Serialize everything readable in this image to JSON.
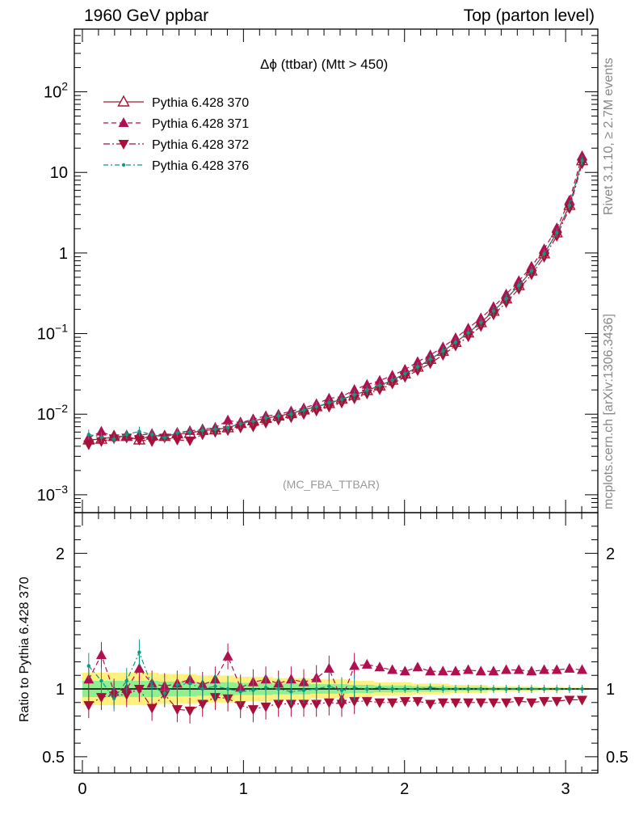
{
  "header": {
    "left_title": "1960 GeV ppbar",
    "right_title": "Top (parton level)",
    "observable": "Δϕ (ttbar) (Mtt > 450)",
    "analysis_tag": "(MC_FBA_TTBAR)",
    "side_rivet": "Rivet 3.1.10, ≥ 2.7M events",
    "side_site": "mcplots.cern.ch [arXiv:1306.3436]",
    "ratio_ylabel": "Ratio to Pythia 6.428 370"
  },
  "colors": {
    "s370": "#a01830",
    "s371": "#b01050",
    "s372": "#a8103a",
    "s376": "#109a80",
    "band_inner": "#90f090",
    "band_outer": "#fff080"
  },
  "chart_data": [
    {
      "type": "scatter",
      "panel": "main",
      "yscale": "log",
      "xlim": [
        -0.05,
        3.2
      ],
      "ylim": [
        0.0006,
        600
      ],
      "xticklabels": [
        "0",
        "1",
        "2",
        "3"
      ],
      "yticklabels": [
        "10^-3",
        "10^-2",
        "10^-1",
        "1",
        "10",
        "10^2"
      ],
      "legend": [
        "Pythia 6.428 370",
        "Pythia 6.428 371",
        "Pythia 6.428 372",
        "Pythia 6.428 376"
      ],
      "legend_position": "top-left",
      "x": [
        0.0393,
        0.1178,
        0.1963,
        0.2749,
        0.3534,
        0.432,
        0.5105,
        0.589,
        0.6676,
        0.7461,
        0.8247,
        0.9032,
        0.9817,
        1.0603,
        1.1388,
        1.2174,
        1.2959,
        1.3744,
        1.453,
        1.5315,
        1.6101,
        1.6886,
        1.7671,
        1.8457,
        1.9242,
        2.0028,
        2.0813,
        2.1598,
        2.2384,
        2.3169,
        2.3955,
        2.474,
        2.5525,
        2.6311,
        2.7096,
        2.7882,
        2.8667,
        2.9452,
        3.0238,
        3.1023
      ],
      "series": [
        {
          "name": "Pythia 6.428 370",
          "values": [
            0.0048,
            0.0049,
            0.0053,
            0.0053,
            0.0048,
            0.0055,
            0.0053,
            0.0057,
            0.0058,
            0.0063,
            0.0064,
            0.0068,
            0.0077,
            0.0083,
            0.0089,
            0.0095,
            0.0102,
            0.0113,
            0.0124,
            0.0136,
            0.0154,
            0.0172,
            0.0197,
            0.0225,
            0.0265,
            0.0317,
            0.0384,
            0.048,
            0.0603,
            0.078,
            0.102,
            0.137,
            0.19,
            0.27,
            0.395,
            0.6,
            0.98,
            1.78,
            3.9,
            14.0
          ]
        },
        {
          "name": "Pythia 6.428 371",
          "values": [
            0.0051,
            0.0061,
            0.0052,
            0.0053,
            0.0055,
            0.0057,
            0.0054,
            0.0059,
            0.0062,
            0.0065,
            0.0068,
            0.0084,
            0.0078,
            0.0087,
            0.0095,
            0.0099,
            0.0109,
            0.0119,
            0.0134,
            0.0157,
            0.0165,
            0.0201,
            0.0232,
            0.0261,
            0.0302,
            0.0358,
            0.0446,
            0.0542,
            0.0679,
            0.0883,
            0.1161,
            0.1555,
            0.2148,
            0.3083,
            0.4513,
            0.6792,
            1.1201,
            2.0381,
            4.4853,
            16.0
          ]
        },
        {
          "name": "Pythia 6.428 372",
          "values": [
            0.0042,
            0.0046,
            0.005,
            0.0051,
            0.0048,
            0.0046,
            0.0051,
            0.0048,
            0.0047,
            0.0056,
            0.006,
            0.0063,
            0.0068,
            0.007,
            0.0078,
            0.0085,
            0.0091,
            0.01,
            0.011,
            0.0123,
            0.0138,
            0.0156,
            0.0179,
            0.0202,
            0.0239,
            0.0288,
            0.0349,
            0.0427,
            0.0542,
            0.0706,
            0.0919,
            0.1231,
            0.1717,
            0.243,
            0.3583,
            0.541,
            0.8885,
            1.6223,
            3.5786,
            12.9
          ]
        },
        {
          "name": "Pythia 6.428 376",
          "values": [
            0.0056,
            0.0052,
            0.0049,
            0.0056,
            0.0061,
            0.0056,
            0.0051,
            0.0059,
            0.006,
            0.0063,
            0.0065,
            0.0068,
            0.0076,
            0.0082,
            0.009,
            0.0095,
            0.01,
            0.0112,
            0.0124,
            0.0139,
            0.0153,
            0.0173,
            0.0198,
            0.0227,
            0.0265,
            0.0318,
            0.0385,
            0.0483,
            0.0605,
            0.0782,
            0.1021,
            0.1373,
            0.1905,
            0.2705,
            0.3958,
            0.6005,
            0.9815,
            1.7825,
            3.901,
            14.01
          ]
        }
      ]
    },
    {
      "type": "scatter",
      "panel": "ratio",
      "xlim": [
        -0.05,
        3.2
      ],
      "ylim": [
        0.38,
        2.3
      ],
      "xticklabels": [
        "0",
        "1",
        "2",
        "3"
      ],
      "yticklabels": [
        "0.5",
        "1",
        "2"
      ],
      "ylabel": "Ratio to Pythia 6.428 370",
      "x": [
        0.0393,
        0.1178,
        0.1963,
        0.2749,
        0.3534,
        0.432,
        0.5105,
        0.589,
        0.6676,
        0.7461,
        0.8247,
        0.9032,
        0.9817,
        1.0603,
        1.1388,
        1.2174,
        1.2959,
        1.3744,
        1.453,
        1.5315,
        1.6101,
        1.6886,
        1.7671,
        1.8457,
        1.9242,
        2.0028,
        2.0813,
        2.1598,
        2.2384,
        2.3169,
        2.3955,
        2.474,
        2.5525,
        2.6311,
        2.7096,
        2.7882,
        2.8667,
        2.9452,
        3.0238,
        3.1023
      ],
      "band_outer": [
        0.12,
        0.12,
        0.12,
        0.12,
        0.12,
        0.12,
        0.11,
        0.11,
        0.11,
        0.1,
        0.1,
        0.1,
        0.09,
        0.09,
        0.09,
        0.08,
        0.08,
        0.08,
        0.07,
        0.07,
        0.07,
        0.06,
        0.06,
        0.05,
        0.05,
        0.05,
        0.04,
        0.04,
        0.04,
        0.03,
        0.03,
        0.03,
        0.02,
        0.02,
        0.02,
        0.02,
        0.015,
        0.015,
        0.01,
        0.01
      ],
      "band_inner": [
        0.06,
        0.06,
        0.06,
        0.06,
        0.06,
        0.06,
        0.055,
        0.055,
        0.055,
        0.05,
        0.05,
        0.05,
        0.045,
        0.045,
        0.045,
        0.04,
        0.04,
        0.04,
        0.035,
        0.035,
        0.035,
        0.03,
        0.03,
        0.025,
        0.025,
        0.025,
        0.02,
        0.02,
        0.02,
        0.015,
        0.015,
        0.015,
        0.01,
        0.01,
        0.01,
        0.01,
        0.008,
        0.008,
        0.005,
        0.005
      ],
      "series": [
        {
          "name": "Pythia 6.428 371",
          "values": [
            1.07,
            1.25,
            0.98,
            1.0,
            1.15,
            1.04,
            1.02,
            1.04,
            1.07,
            1.03,
            1.07,
            1.24,
            1.01,
            1.05,
            1.07,
            1.04,
            1.07,
            1.05,
            1.08,
            1.15,
            0.92,
            1.17,
            1.18,
            1.16,
            1.14,
            1.13,
            1.16,
            1.13,
            1.13,
            1.13,
            1.14,
            1.13,
            1.13,
            1.14,
            1.14,
            1.13,
            1.14,
            1.14,
            1.15,
            1.14
          ]
        },
        {
          "name": "Pythia 6.428 372",
          "values": [
            0.88,
            0.94,
            0.95,
            0.96,
            1.0,
            0.86,
            0.96,
            0.85,
            0.84,
            0.89,
            0.94,
            0.93,
            0.88,
            0.85,
            0.87,
            0.89,
            0.89,
            0.89,
            0.89,
            0.9,
            0.89,
            0.91,
            0.91,
            0.9,
            0.9,
            0.91,
            0.91,
            0.89,
            0.9,
            0.9,
            0.9,
            0.9,
            0.9,
            0.9,
            0.91,
            0.9,
            0.91,
            0.91,
            0.92,
            0.92
          ]
        },
        {
          "name": "Pythia 6.428 376",
          "values": [
            1.17,
            1.06,
            0.93,
            1.06,
            1.27,
            1.02,
            0.97,
            1.03,
            1.04,
            1.0,
            1.02,
            1.0,
            0.98,
            0.99,
            1.01,
            1.0,
            0.98,
            0.99,
            1.0,
            1.02,
            0.99,
            1.01,
            1.0,
            1.01,
            1.0,
            1.0,
            1.0,
            1.01,
            1.0,
            1.0,
            1.0,
            1.0,
            1.0,
            1.0,
            1.0,
            1.0,
            1.0,
            1.0,
            1.0,
            1.0
          ]
        }
      ]
    }
  ]
}
